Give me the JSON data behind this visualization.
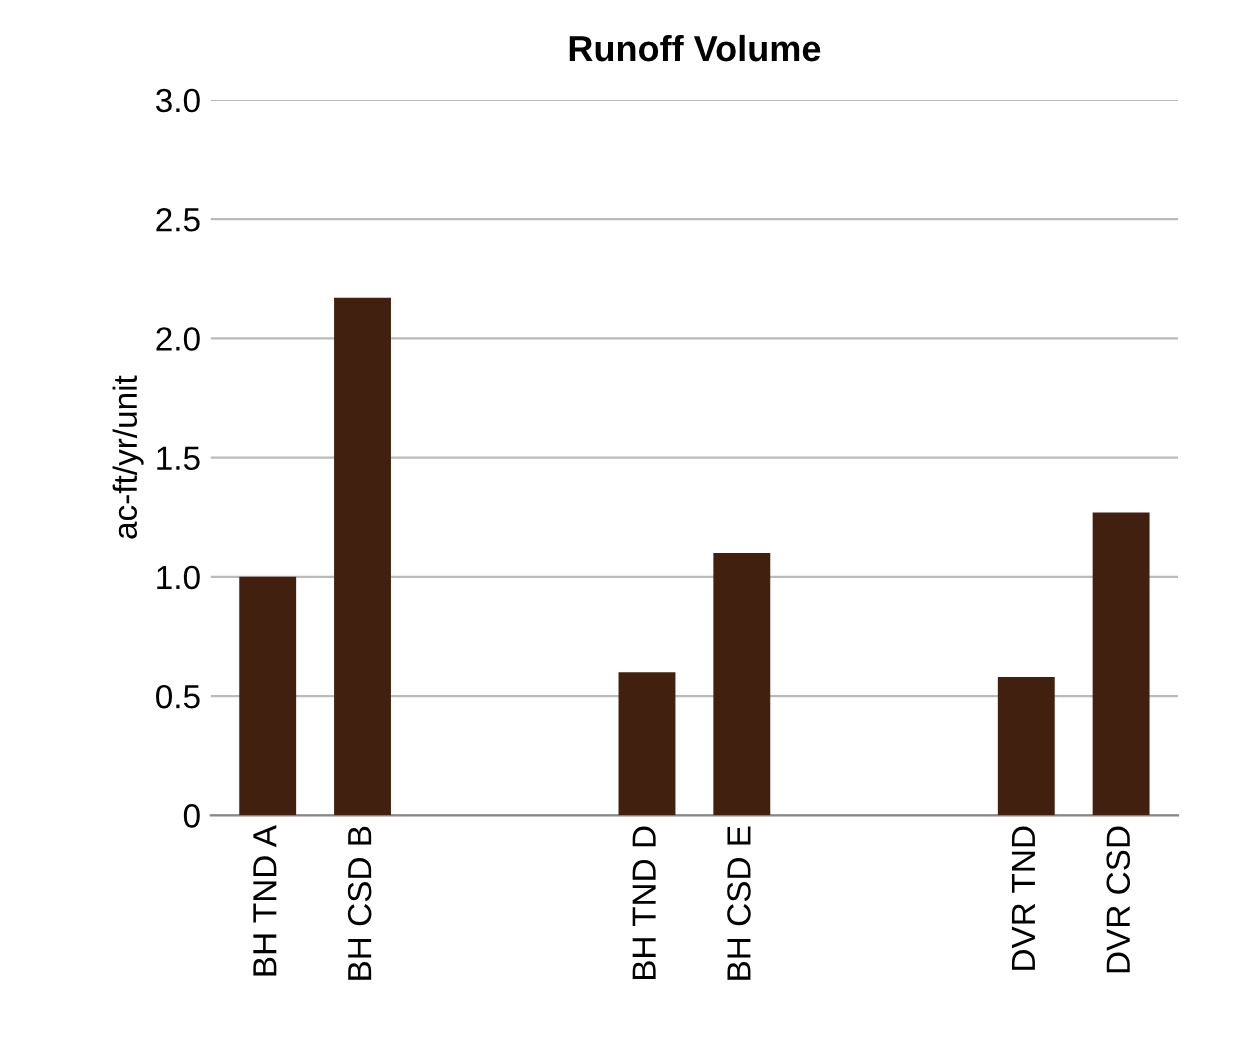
{
  "chart_data": {
    "type": "bar",
    "title": "Runoff Volume",
    "ylabel": "ac-ft/yr/unit",
    "categories": [
      "BH TND A",
      "BH CSD B",
      null,
      null,
      "BH TND D",
      "BH CSD E",
      null,
      null,
      "DVR TND",
      "DVR CSD"
    ],
    "values": [
      1.0,
      2.17,
      null,
      null,
      0.6,
      1.1,
      null,
      null,
      0.58,
      1.27
    ],
    "color": "#42200f",
    "ylim": [
      0,
      3
    ],
    "yticks": [
      0,
      {
        "value": 0.5,
        "label": "0.5"
      },
      {
        "value": 1,
        "label": "1.0"
      },
      {
        "value": 1.5,
        "label": "1.5"
      },
      {
        "value": 2,
        "label": "2.0"
      },
      {
        "value": 2.5,
        "label": "2.5"
      },
      {
        "value": 3,
        "label": "3.0"
      }
    ],
    "grid": "y"
  }
}
